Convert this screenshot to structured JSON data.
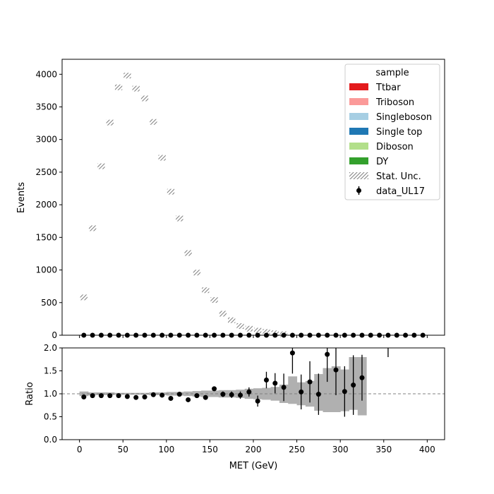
{
  "chart_data": [
    {
      "type": "bar",
      "ylabel": "Events",
      "xlabel": "",
      "xlim": [
        -20,
        420
      ],
      "ylim": [
        0,
        4230
      ],
      "xticks": [
        0,
        50,
        100,
        150,
        200,
        250,
        300,
        350,
        400
      ],
      "xtick_labels_shown": false,
      "yticks": [
        0,
        500,
        1000,
        1500,
        2000,
        2500,
        3000,
        3500,
        4000
      ],
      "ytick_labels": [
        "0",
        "500",
        "1000",
        "1500",
        "2000",
        "2500",
        "3000",
        "3500",
        "4000"
      ],
      "legend": {
        "title": "sample",
        "placement": "top-right",
        "entries": [
          {
            "label": "Ttbar",
            "kind": "patch",
            "color": "#e31a1c"
          },
          {
            "label": "Triboson",
            "kind": "patch",
            "color": "#fb9a99"
          },
          {
            "label": "Singleboson",
            "kind": "patch",
            "color": "#a6cee3"
          },
          {
            "label": "Single top",
            "kind": "patch",
            "color": "#1f78b4"
          },
          {
            "label": "Diboson",
            "kind": "patch",
            "color": "#b2df8a"
          },
          {
            "label": "DY",
            "kind": "patch",
            "color": "#33a02c"
          },
          {
            "label": "Stat. Unc.",
            "kind": "hatch",
            "color": "#808080"
          },
          {
            "label": "data_UL17",
            "kind": "errorbar",
            "color": "#000000"
          }
        ]
      },
      "stat_unc": {
        "bin_edges": [
          0,
          10,
          20,
          30,
          40,
          50,
          60,
          70,
          80,
          90,
          100,
          110,
          120,
          130,
          140,
          150,
          160,
          170,
          180,
          190,
          200,
          210,
          220,
          230,
          240
        ],
        "values": [
          580,
          1640,
          2590,
          3260,
          3800,
          3980,
          3780,
          3630,
          3270,
          2720,
          2200,
          1790,
          1260,
          960,
          690,
          540,
          330,
          230,
          140,
          100,
          70,
          50,
          30,
          15
        ]
      },
      "data_points": {
        "x": [
          5,
          15,
          25,
          35,
          45,
          55,
          65,
          75,
          85,
          95,
          105,
          115,
          125,
          135,
          145,
          155,
          165,
          175,
          185,
          195,
          205,
          215,
          225,
          235,
          245,
          255,
          265,
          275,
          285,
          295,
          305,
          315,
          325,
          335,
          345,
          355,
          365,
          375,
          385,
          395
        ],
        "y": [
          0,
          0,
          0,
          0,
          0,
          0,
          0,
          0,
          0,
          0,
          0,
          0,
          0,
          0,
          0,
          0,
          0,
          0,
          0,
          0,
          0,
          0,
          0,
          0,
          0,
          0,
          0,
          0,
          0,
          0,
          0,
          0,
          0,
          0,
          0,
          0,
          0,
          0,
          0,
          0
        ]
      }
    },
    {
      "type": "scatter",
      "xlabel": "MET (GeV)",
      "ylabel": "Ratio",
      "xlim": [
        -20,
        420
      ],
      "ylim": [
        0,
        2
      ],
      "xticks": [
        0,
        50,
        100,
        150,
        200,
        250,
        300,
        350,
        400
      ],
      "xtick_labels": [
        "0",
        "50",
        "100",
        "150",
        "200",
        "250",
        "300",
        "350",
        "400"
      ],
      "yticks": [
        0,
        0.5,
        1,
        1.5,
        2
      ],
      "ytick_labels": [
        "0.0",
        "0.5",
        "1.0",
        "1.5",
        "2.0"
      ],
      "reference_line": 1,
      "unc_band": {
        "bin_edges": [
          0,
          10,
          20,
          30,
          40,
          50,
          60,
          70,
          80,
          90,
          100,
          110,
          120,
          130,
          140,
          150,
          160,
          170,
          180,
          190,
          200,
          210,
          220,
          230,
          240,
          250,
          260,
          270,
          280,
          290,
          300,
          310,
          320,
          330
        ],
        "low": [
          0.95,
          0.97,
          0.97,
          0.97,
          0.98,
          0.98,
          0.98,
          0.98,
          0.97,
          0.97,
          0.96,
          0.96,
          0.95,
          0.94,
          0.93,
          0.93,
          0.92,
          0.92,
          0.91,
          0.89,
          0.88,
          0.87,
          0.85,
          0.8,
          0.78,
          0.75,
          0.72,
          0.63,
          0.6,
          0.6,
          0.62,
          0.65,
          0.53
        ],
        "high": [
          1.05,
          1.03,
          1.03,
          1.03,
          1.02,
          1.02,
          1.02,
          1.02,
          1.03,
          1.03,
          1.04,
          1.04,
          1.05,
          1.06,
          1.07,
          1.07,
          1.08,
          1.08,
          1.09,
          1.11,
          1.12,
          1.13,
          1.15,
          1.2,
          1.38,
          1.25,
          1.28,
          1.43,
          1.56,
          1.6,
          1.53,
          1.8,
          1.8
        ]
      },
      "points": [
        {
          "x": 5,
          "y": 0.93,
          "err": 0.01
        },
        {
          "x": 15,
          "y": 0.96,
          "err": 0.01
        },
        {
          "x": 25,
          "y": 0.96,
          "err": 0.01
        },
        {
          "x": 35,
          "y": 0.96,
          "err": 0.01
        },
        {
          "x": 45,
          "y": 0.96,
          "err": 0.01
        },
        {
          "x": 55,
          "y": 0.94,
          "err": 0.01
        },
        {
          "x": 65,
          "y": 0.92,
          "err": 0.01
        },
        {
          "x": 75,
          "y": 0.93,
          "err": 0.01
        },
        {
          "x": 85,
          "y": 0.98,
          "err": 0.01
        },
        {
          "x": 95,
          "y": 0.97,
          "err": 0.01
        },
        {
          "x": 105,
          "y": 0.9,
          "err": 0.02
        },
        {
          "x": 115,
          "y": 0.99,
          "err": 0.02
        },
        {
          "x": 125,
          "y": 0.87,
          "err": 0.03
        },
        {
          "x": 135,
          "y": 0.96,
          "err": 0.03
        },
        {
          "x": 145,
          "y": 0.92,
          "err": 0.04
        },
        {
          "x": 155,
          "y": 1.11,
          "err": 0.05
        },
        {
          "x": 165,
          "y": 0.99,
          "err": 0.06
        },
        {
          "x": 175,
          "y": 0.98,
          "err": 0.07
        },
        {
          "x": 185,
          "y": 0.97,
          "err": 0.08
        },
        {
          "x": 195,
          "y": 1.04,
          "err": 0.1
        },
        {
          "x": 205,
          "y": 0.84,
          "err": 0.12
        },
        {
          "x": 215,
          "y": 1.3,
          "err": 0.18
        },
        {
          "x": 225,
          "y": 1.23,
          "err": 0.22
        },
        {
          "x": 235,
          "y": 1.14,
          "err": 0.3
        },
        {
          "x": 245,
          "y": 1.89,
          "err": 0.45
        },
        {
          "x": 255,
          "y": 1.04,
          "err": 0.38
        },
        {
          "x": 265,
          "y": 1.26,
          "err": 0.45
        },
        {
          "x": 275,
          "y": 0.99,
          "err": 0.45
        },
        {
          "x": 285,
          "y": 1.86,
          "err": 0.6
        },
        {
          "x": 295,
          "y": 1.52,
          "err": 0.55
        },
        {
          "x": 305,
          "y": 1.05,
          "err": 0.55
        },
        {
          "x": 315,
          "y": 1.19,
          "err": 0.65
        },
        {
          "x": 325,
          "y": 1.35,
          "err": 0.5
        }
      ],
      "offscale_bar": {
        "x": 355,
        "y_low": 1.8
      }
    }
  ]
}
